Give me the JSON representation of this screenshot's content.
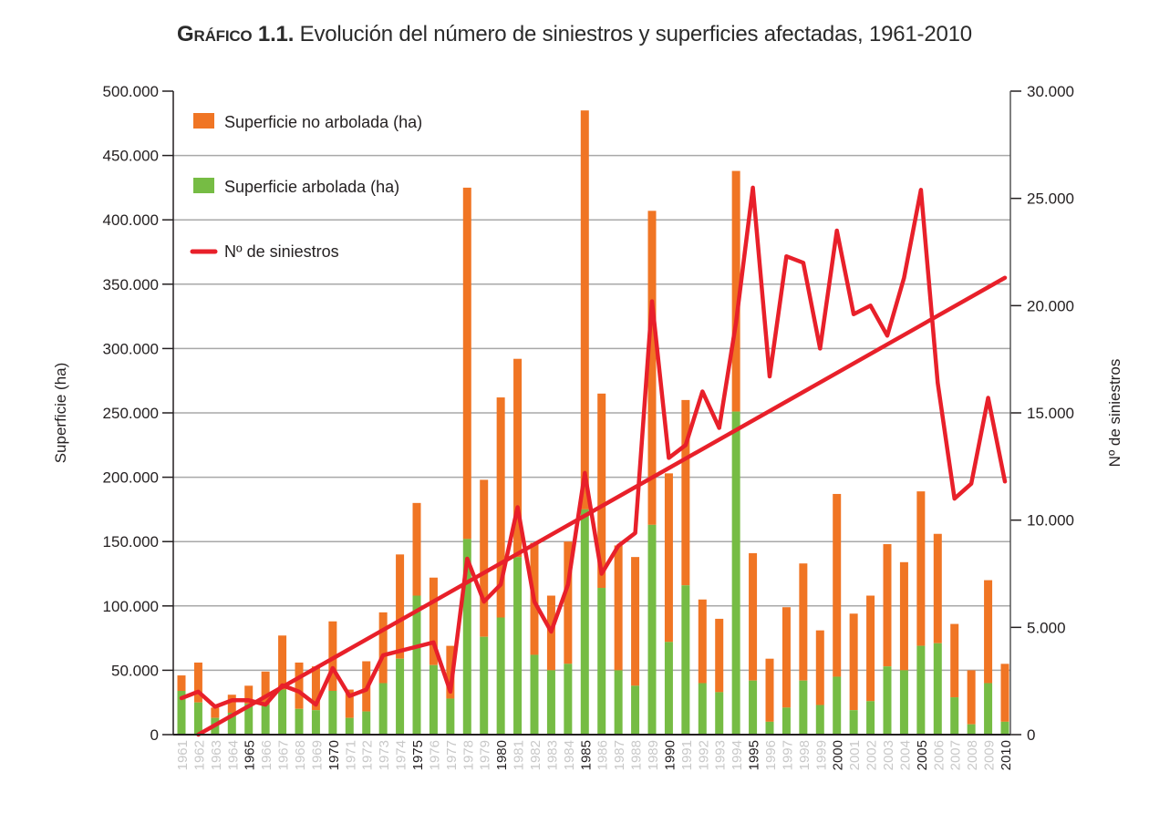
{
  "title": {
    "prefix": "Gráfico 1.1.",
    "main": " Evolución del número de siniestros y superficies afectadas, 1961-2010"
  },
  "colors": {
    "no_arbolada": "#f07524",
    "arbolada": "#76bc44",
    "siniestros": "#e8202a",
    "grid": "#a8a8a8",
    "axis": "#231f20",
    "year_major": "#231f20",
    "year_minor": "#c8c8c8"
  },
  "chart_data": {
    "type": "bar",
    "stacked": true,
    "title": "Gráfico 1.1. Evolución del número de siniestros y superficies afectadas, 1961-2010",
    "xlabel": "",
    "ylabel": "Superficie (ha)",
    "y2label": "Nº de siniestros",
    "ylim": [
      0,
      500000
    ],
    "y2lim": [
      0,
      30000
    ],
    "yticks": [
      "0",
      "50.000",
      "100.000",
      "150.000",
      "200.000",
      "250.000",
      "300.000",
      "350.000",
      "400.000",
      "450.000",
      "500.000"
    ],
    "y2ticks": [
      "0",
      "5.000",
      "10.000",
      "15.000",
      "20.000",
      "25.000",
      "30.000"
    ],
    "grid": true,
    "legend_position": "top-left",
    "major_years": [
      "1965",
      "1970",
      "1975",
      "1980",
      "1985",
      "1990",
      "1995",
      "2000",
      "2005",
      "2010"
    ],
    "categories": [
      "1961",
      "1962",
      "1963",
      "1964",
      "1965",
      "1966",
      "1967",
      "1968",
      "1969",
      "1970",
      "1971",
      "1972",
      "1973",
      "1974",
      "1975",
      "1976",
      "1977",
      "1978",
      "1979",
      "1980",
      "1981",
      "1982",
      "1983",
      "1984",
      "1985",
      "1986",
      "1987",
      "1988",
      "1989",
      "1990",
      "1991",
      "1992",
      "1993",
      "1994",
      "1995",
      "1996",
      "1997",
      "1998",
      "1999",
      "2000",
      "2001",
      "2002",
      "2003",
      "2004",
      "2005",
      "2006",
      "2007",
      "2008",
      "2009",
      "2010"
    ],
    "series": [
      {
        "name": "Superficie arbolada (ha)",
        "type": "bar",
        "axis": "left",
        "values": [
          34000,
          25000,
          13000,
          17000,
          24000,
          23000,
          35000,
          20000,
          19000,
          34000,
          13000,
          18000,
          40000,
          59000,
          108000,
          54000,
          28000,
          152000,
          76000,
          91000,
          138000,
          62000,
          50000,
          55000,
          175000,
          114000,
          50000,
          38000,
          163000,
          72000,
          116000,
          40000,
          33000,
          251000,
          42000,
          10000,
          21000,
          42000,
          23000,
          45000,
          19000,
          26000,
          53000,
          50000,
          69000,
          71000,
          29000,
          8000,
          40000,
          10000
        ]
      },
      {
        "name": "Superficie no arbolada (ha)",
        "type": "bar",
        "axis": "left",
        "values": [
          12000,
          31000,
          8000,
          14000,
          14000,
          26000,
          42000,
          36000,
          34000,
          54000,
          22000,
          39000,
          55000,
          81000,
          72000,
          68000,
          41000,
          273000,
          122000,
          171000,
          154000,
          87000,
          58000,
          95000,
          310000,
          151000,
          97000,
          100000,
          244000,
          131000,
          144000,
          65000,
          57000,
          187000,
          99000,
          49000,
          78000,
          91000,
          58000,
          142000,
          75000,
          82000,
          95000,
          84000,
          120000,
          85000,
          57000,
          42000,
          80000,
          45000
        ]
      },
      {
        "name": "Nº de siniestros",
        "type": "line",
        "axis": "right",
        "values": [
          1700,
          2000,
          1300,
          1600,
          1600,
          1400,
          2300,
          2000,
          1400,
          3100,
          1800,
          2100,
          3700,
          3900,
          4100,
          4300,
          2000,
          8200,
          6200,
          7000,
          10600,
          6200,
          4800,
          7000,
          12200,
          7500,
          8800,
          9400,
          20200,
          12900,
          13500,
          16000,
          14300,
          19200,
          25500,
          16700,
          22300,
          22000,
          18000,
          23500,
          19600,
          20000,
          18600,
          21300,
          25400,
          16400,
          11000,
          11700,
          15700,
          11800
        ]
      },
      {
        "name": "Tendencia Nº de siniestros",
        "type": "trendline",
        "axis": "right",
        "start": {
          "x": "1962",
          "y": 0
        },
        "end": {
          "x": "2010",
          "y": 21300
        }
      }
    ],
    "legend": [
      {
        "label": "Superficie no arbolada (ha)",
        "marker": "square",
        "color": "#f07524"
      },
      {
        "label": "Superficie arbolada (ha)",
        "marker": "square",
        "color": "#76bc44"
      },
      {
        "label": "Nº de siniestros",
        "marker": "line",
        "color": "#e8202a"
      }
    ]
  }
}
